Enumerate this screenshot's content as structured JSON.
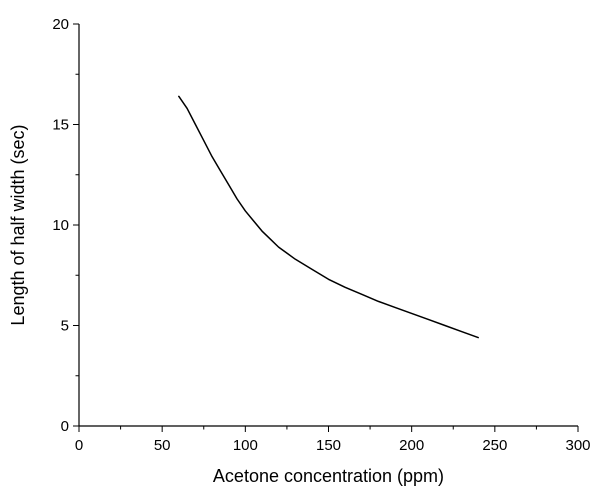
{
  "chart_data": {
    "type": "line",
    "title": "",
    "xlabel": "Acetone concentration (ppm)",
    "ylabel": "Length of half width (sec)",
    "xlim": [
      0,
      300
    ],
    "ylim": [
      0,
      20
    ],
    "xticks": [
      0,
      50,
      100,
      150,
      200,
      250,
      300
    ],
    "yticks": [
      0,
      5,
      10,
      15,
      20
    ],
    "xtick_labels": [
      "0",
      "50",
      "100",
      "150",
      "200",
      "250",
      "300"
    ],
    "ytick_labels": [
      "0",
      "5",
      "10",
      "15",
      "20"
    ],
    "grid": false,
    "legend": "none",
    "line_color": "#000000",
    "series": [
      {
        "x": [
          60,
          65,
          70,
          75,
          80,
          85,
          90,
          95,
          100,
          105,
          110,
          115,
          120,
          125,
          130,
          140,
          150,
          160,
          170,
          180,
          190,
          200,
          210,
          220,
          230,
          240
        ],
        "y": [
          16.4,
          15.8,
          15.0,
          14.2,
          13.4,
          12.7,
          12.0,
          11.3,
          10.7,
          10.2,
          9.7,
          9.3,
          8.9,
          8.6,
          8.3,
          7.8,
          7.3,
          6.9,
          6.55,
          6.2,
          5.9,
          5.6,
          5.3,
          5.0,
          4.7,
          4.4
        ]
      }
    ]
  }
}
